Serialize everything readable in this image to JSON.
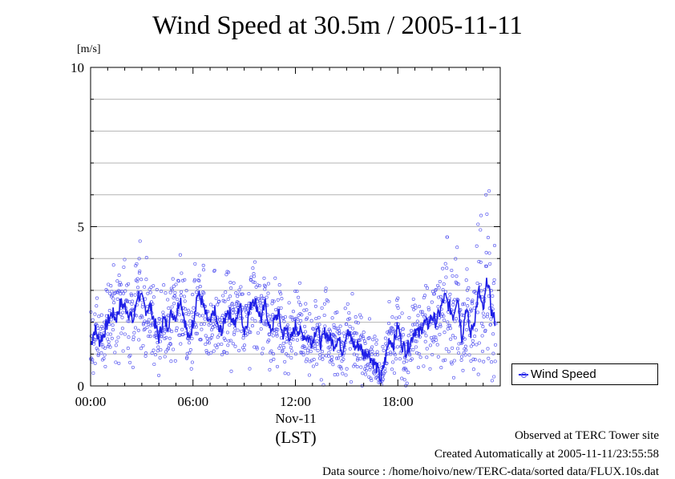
{
  "chart_data": {
    "type": "scatter",
    "title": "Wind Speed at 30.5m / 2005-11-11",
    "ylabel": "[m/s]",
    "xlabel": "(LST)",
    "ylim": [
      0,
      10
    ],
    "xlim": [
      "00:00",
      "24:00"
    ],
    "y_ticks": [
      "0",
      "5",
      "10"
    ],
    "x_ticks": [
      "00:00",
      "06:00",
      "12:00",
      "18:00"
    ],
    "date_label": "Nov-11",
    "grid": true,
    "legend_position": "right",
    "series": [
      {
        "name": "Wind Speed",
        "color": "#1f1fe6",
        "marker_color": "#5c5cf0",
        "x_hours": [
          0.0,
          0.25,
          0.5,
          0.75,
          1.0,
          1.25,
          1.5,
          1.75,
          2.0,
          2.25,
          2.5,
          2.75,
          3.0,
          3.25,
          3.5,
          3.75,
          4.0,
          4.25,
          4.5,
          4.75,
          5.0,
          5.25,
          5.5,
          5.75,
          6.0,
          6.25,
          6.5,
          6.75,
          7.0,
          7.25,
          7.5,
          7.75,
          8.0,
          8.25,
          8.5,
          8.75,
          9.0,
          9.25,
          9.5,
          9.75,
          10.0,
          10.25,
          10.5,
          10.75,
          11.0,
          11.25,
          11.5,
          11.75,
          12.0,
          12.25,
          12.5,
          12.75,
          13.0,
          13.25,
          13.5,
          13.75,
          14.0,
          14.25,
          14.5,
          14.75,
          15.0,
          15.25,
          15.5,
          15.75,
          16.0,
          16.25,
          16.5,
          16.75,
          17.0,
          17.25,
          17.5,
          17.75,
          18.0,
          18.25,
          18.5,
          18.75,
          19.0,
          19.25,
          19.5,
          19.75,
          20.0,
          20.25,
          20.5,
          20.75,
          21.0,
          21.25,
          21.5,
          21.75,
          22.0,
          22.25,
          22.5,
          22.75,
          23.0,
          23.25,
          23.5,
          23.75
        ],
        "values": [
          1.3,
          1.8,
          1.4,
          1.6,
          2.0,
          2.3,
          2.1,
          2.6,
          2.5,
          2.3,
          2.0,
          2.9,
          2.7,
          2.4,
          2.5,
          2.0,
          1.5,
          2.1,
          1.9,
          2.3,
          2.2,
          2.8,
          2.1,
          1.4,
          2.0,
          2.9,
          2.7,
          2.2,
          1.9,
          2.4,
          1.7,
          1.8,
          2.4,
          2.2,
          1.9,
          2.6,
          1.7,
          2.2,
          2.8,
          2.5,
          2.1,
          2.6,
          1.7,
          2.0,
          2.3,
          1.6,
          1.8,
          1.4,
          1.9,
          1.7,
          1.6,
          1.5,
          1.4,
          1.9,
          1.3,
          1.7,
          1.5,
          1.3,
          1.5,
          1.1,
          1.7,
          1.5,
          1.2,
          1.3,
          1.0,
          1.1,
          0.8,
          0.6,
          0.2,
          0.8,
          1.5,
          1.3,
          1.9,
          1.3,
          1.1,
          1.4,
          1.8,
          1.6,
          2.0,
          1.9,
          2.2,
          2.0,
          2.4,
          2.8,
          2.5,
          2.2,
          2.9,
          1.5,
          2.5,
          1.6,
          2.1,
          3.0,
          2.3,
          3.4,
          2.3,
          2.0
        ]
      }
    ],
    "footer": [
      "Observed at TERC Tower site",
      "Created Automatically at 2005-11-11/23:55:58",
      "Data source : /home/hoivo/new/TERC-data/sorted  data/FLUX.10s.dat"
    ]
  }
}
